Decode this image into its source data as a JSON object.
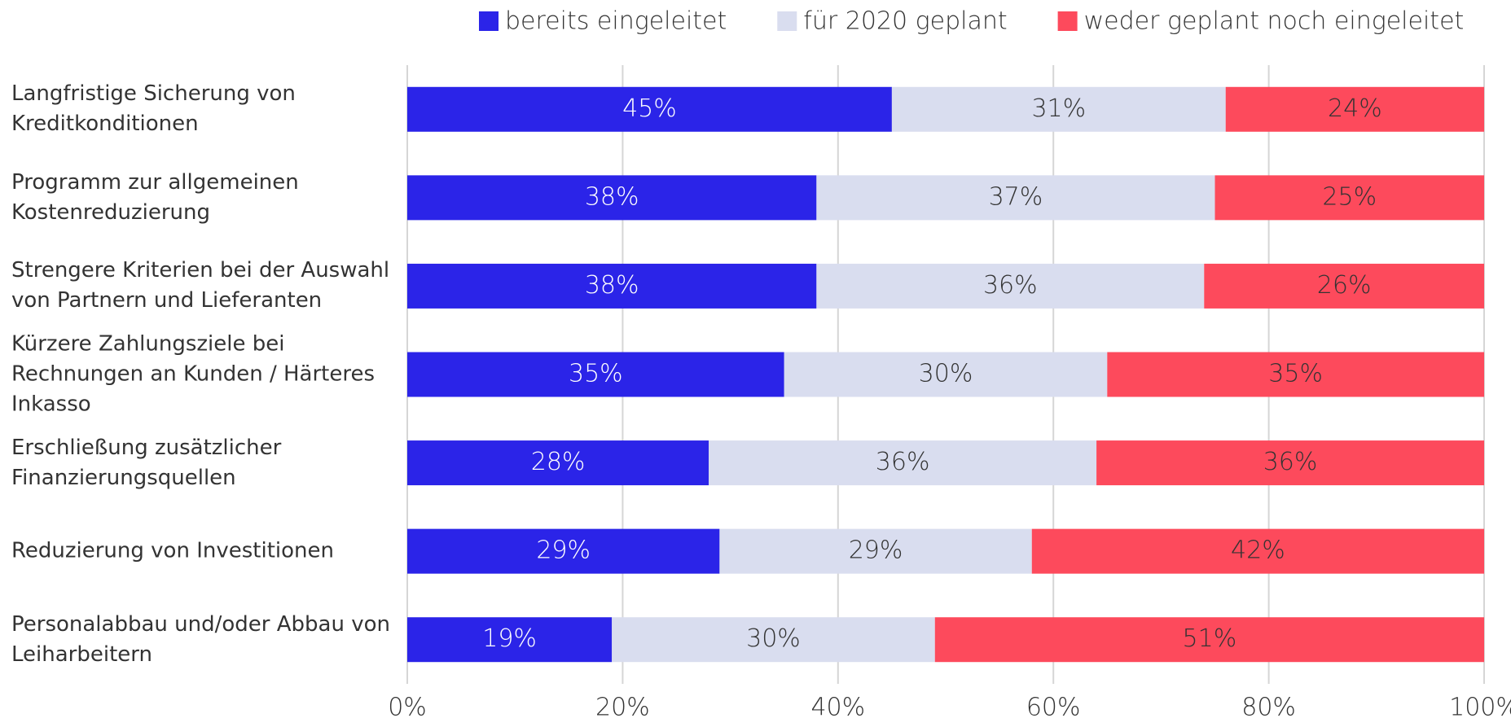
{
  "chart_data": {
    "type": "stacked-barh",
    "categories": [
      "Langfristige Sicherung von Kreditkonditionen",
      "Programm zur allgemeinen Kostenreduzierung",
      "Strengere Kriterien bei der Auswahl von Partnern und Lieferanten",
      "Kürzere Zahlungsziele bei Rechnungen an Kunden / Härteres Inkasso",
      "Erschließung zusätzlicher Finanzierungsquellen",
      "Reduzierung von Investitionen",
      "Personalabbau und/oder Abbau von Leiharbeitern"
    ],
    "series": [
      {
        "name": "bereits eingeleitet",
        "color": "#2b24e8",
        "values": [
          45,
          38,
          38,
          35,
          28,
          29,
          19
        ],
        "value_labels": [
          "45%",
          "38%",
          "38%",
          "35%",
          "28%",
          "29%",
          "19%"
        ]
      },
      {
        "name": "für 2020 geplant",
        "color": "#d9ddef",
        "values": [
          31,
          37,
          36,
          30,
          36,
          29,
          30
        ],
        "value_labels": [
          "31%",
          "37%",
          "36%",
          "30%",
          "36%",
          "29%",
          "30%"
        ]
      },
      {
        "name": "weder geplant noch eingeleitet",
        "color": "#fd4a5c",
        "values": [
          24,
          25,
          26,
          35,
          36,
          42,
          51
        ],
        "value_labels": [
          "24%",
          "25%",
          "26%",
          "35%",
          "36%",
          "42%",
          "51%"
        ]
      }
    ],
    "xlim": [
      0,
      100
    ],
    "xticks": [
      {
        "value": 0,
        "label": "0%"
      },
      {
        "value": 20,
        "label": "20%"
      },
      {
        "value": 40,
        "label": "40%"
      },
      {
        "value": 60,
        "label": "60%"
      },
      {
        "value": 80,
        "label": "80%"
      },
      {
        "value": 100,
        "label": "100%"
      }
    ],
    "grid": true,
    "legend": "top"
  }
}
